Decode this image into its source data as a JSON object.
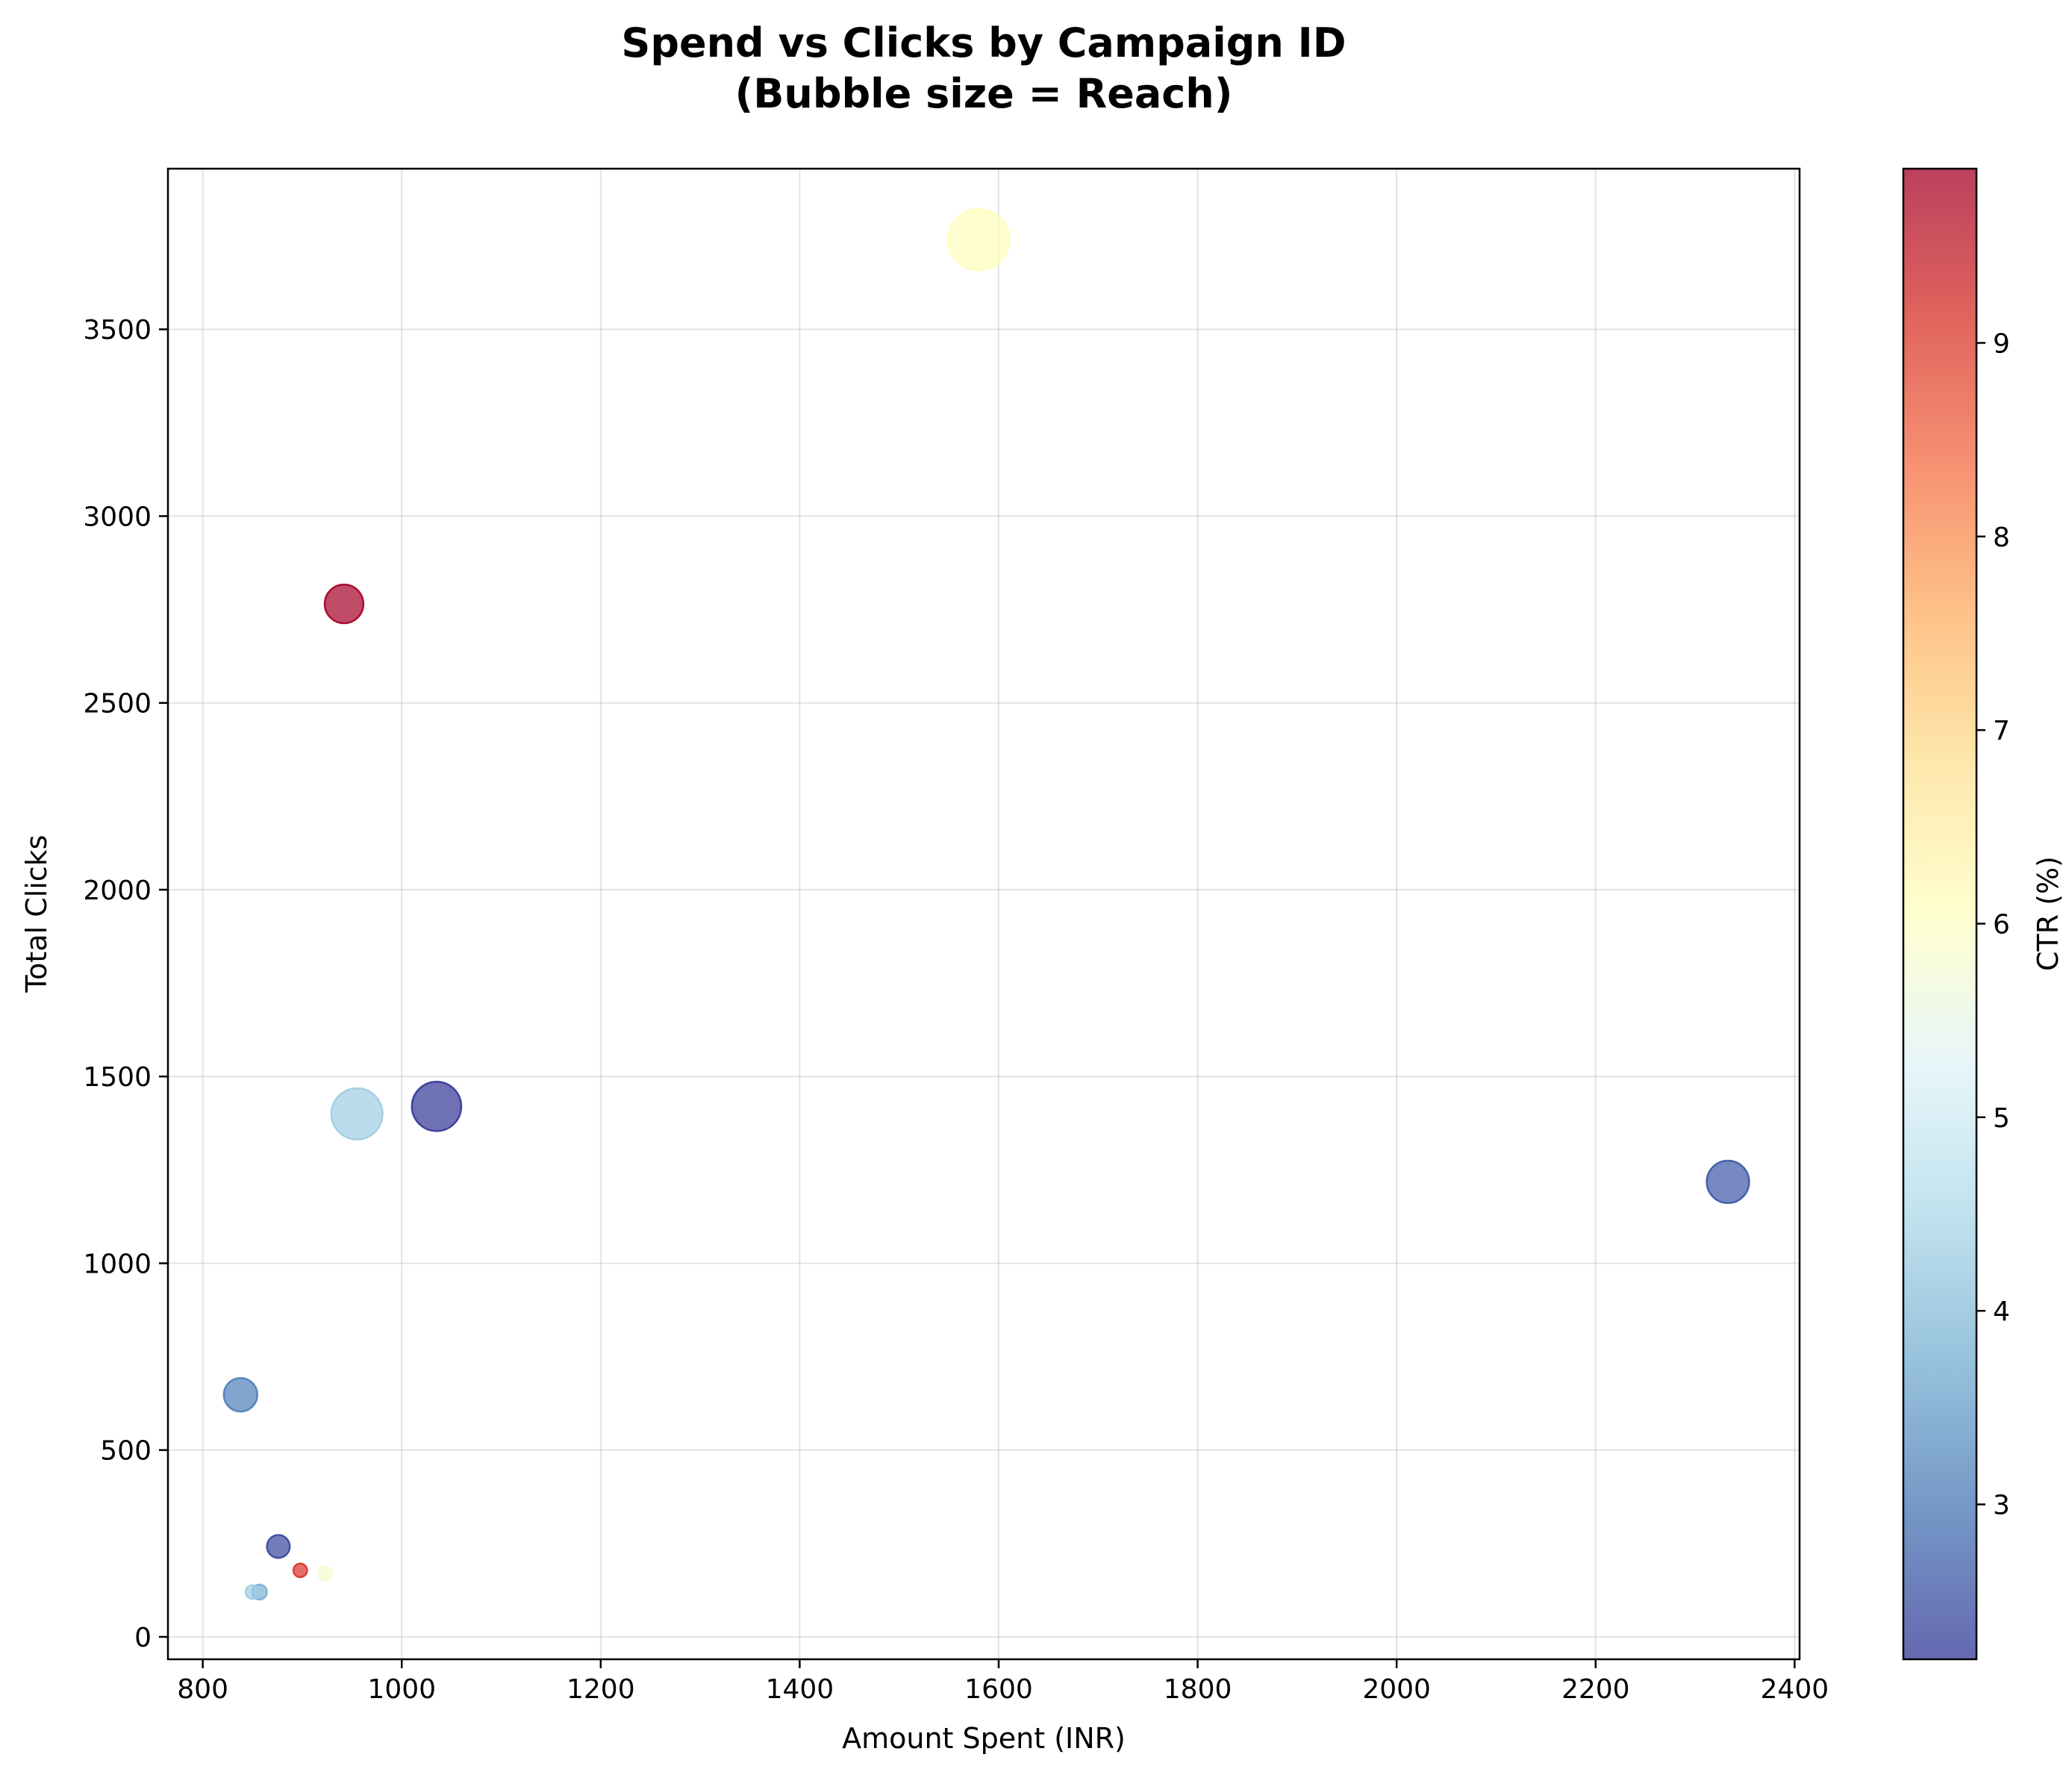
{
  "chart_data": {
    "type": "scatter",
    "title_lines": [
      "Spend vs Clicks by Campaign ID",
      "(Bubble size = Reach)"
    ],
    "xlabel": "Amount Spent (INR)",
    "ylabel": "Total Clicks",
    "xlim": [
      765,
      2405
    ],
    "ylim": [
      -60,
      3930
    ],
    "xticks": [
      800,
      1000,
      1200,
      1400,
      1600,
      1800,
      2000,
      2200,
      2400
    ],
    "yticks": [
      0,
      500,
      1000,
      1500,
      2000,
      2500,
      3000,
      3500
    ],
    "grid": true,
    "size_encoding": "Reach",
    "color_encoding": "CTR (%)",
    "colorbar": {
      "label": "CTR (%)",
      "range": [
        2.2,
        9.9
      ],
      "ticks": [
        3,
        4,
        5,
        6,
        7,
        8,
        9
      ],
      "colormap": "RdYlBu_r",
      "stops": [
        "#313695",
        "#4575b4",
        "#74add1",
        "#abd9e9",
        "#e0f3f8",
        "#ffffbf",
        "#fee090",
        "#fdae61",
        "#f46d43",
        "#d73027",
        "#a50026"
      ]
    },
    "points": [
      {
        "x": 1580,
        "y": 3740,
        "ctr": 6.1,
        "reach": 100
      },
      {
        "x": 942,
        "y": 2765,
        "ctr": 9.9,
        "reach": 40
      },
      {
        "x": 955,
        "y": 1400,
        "ctr": 4.3,
        "reach": 70
      },
      {
        "x": 1035,
        "y": 1420,
        "ctr": 2.2,
        "reach": 65
      },
      {
        "x": 2333,
        "y": 1218,
        "ctr": 2.6,
        "reach": 48
      },
      {
        "x": 838,
        "y": 648,
        "ctr": 3.1,
        "reach": 30
      },
      {
        "x": 876,
        "y": 242,
        "ctr": 2.4,
        "reach": 14
      },
      {
        "x": 898,
        "y": 178,
        "ctr": 9.1,
        "reach": 5
      },
      {
        "x": 923,
        "y": 170,
        "ctr": 5.8,
        "reach": 5
      },
      {
        "x": 850,
        "y": 120,
        "ctr": 4.3,
        "reach": 5
      },
      {
        "x": 857,
        "y": 120,
        "ctr": 3.8,
        "reach": 6
      }
    ]
  }
}
